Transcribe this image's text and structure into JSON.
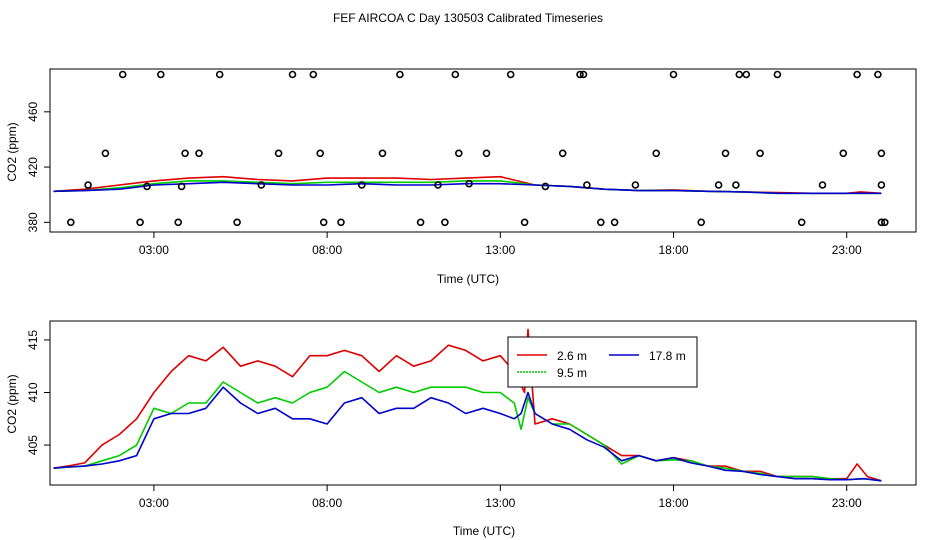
{
  "title": "FEF AIRCOA C  Day 130503  Calibrated Timeseries",
  "colors": {
    "red": "#dd0000",
    "green": "#00cc00",
    "blue": "#0000cc",
    "axis": "#000000"
  },
  "chart_data": [
    {
      "type": "line",
      "xlabel": "Time (UTC)",
      "ylabel": "CO2 (ppm)",
      "xlim": [
        0,
        25
      ],
      "ylim": [
        373,
        491
      ],
      "xticks": [
        3,
        8,
        13,
        18,
        23
      ],
      "xtick_labels": [
        "03:00",
        "08:00",
        "13:00",
        "18:00",
        "23:00"
      ],
      "yticks": [
        380,
        420,
        460
      ],
      "ytick_labels": [
        "380",
        "420",
        "460"
      ],
      "series": [
        {
          "name": "2.6 m",
          "color": "red",
          "x": [
            0.1,
            1,
            2,
            3,
            4,
            5,
            6,
            7,
            8,
            9,
            10,
            11,
            12,
            13,
            13.5,
            14,
            15,
            16,
            17,
            18,
            19,
            20,
            21,
            22,
            23,
            23.4,
            24
          ],
          "y": [
            402.5,
            404,
            407,
            410,
            412,
            413,
            411,
            410,
            412,
            412,
            412,
            411,
            412,
            413,
            410,
            407,
            406,
            404,
            403,
            403.5,
            402.5,
            402,
            401.5,
            401,
            401,
            402,
            401
          ]
        },
        {
          "name": "9.5 m",
          "color": "green",
          "x": [
            0.1,
            1,
            2,
            3,
            4,
            5,
            6,
            7,
            8,
            9,
            10,
            11,
            12,
            13,
            14,
            15,
            16,
            17,
            18,
            19,
            20,
            21,
            22,
            23,
            24
          ],
          "y": [
            402.5,
            403,
            405,
            408,
            410,
            410,
            409,
            408,
            409,
            409,
            409,
            409,
            410,
            410,
            407,
            406,
            404,
            403,
            403,
            402.5,
            402,
            401,
            401,
            401,
            401
          ]
        },
        {
          "name": "17.8 m",
          "color": "blue",
          "x": [
            0.1,
            1,
            2,
            3,
            4,
            5,
            6,
            7,
            8,
            9,
            10,
            11,
            12,
            13,
            14,
            15,
            16,
            17,
            18,
            19,
            20,
            21,
            22,
            23,
            24
          ],
          "y": [
            402.5,
            403,
            404,
            407,
            408,
            409,
            408,
            407,
            407,
            408,
            407,
            407,
            408,
            408,
            407,
            406,
            404,
            403,
            403,
            402.5,
            402,
            401,
            401,
            401,
            401
          ]
        },
        {
          "name": "flags",
          "kind": "points",
          "color": "axis",
          "x": [
            0.6,
            1.1,
            1.6,
            2.1,
            2.6,
            2.8,
            3.2,
            3.7,
            3.8,
            3.9,
            4.3,
            4.9,
            5.4,
            6.1,
            6.6,
            7.0,
            7.6,
            7.8,
            7.9,
            8.4,
            9.0,
            9.6,
            10.1,
            10.7,
            11.2,
            11.4,
            11.7,
            11.8,
            12.1,
            12.6,
            13.3,
            13.7,
            14.3,
            14.8,
            15.3,
            15.4,
            15.5,
            15.9,
            16.3,
            16.9,
            17.5,
            18.0,
            18.8,
            19.3,
            19.5,
            19.8,
            19.9,
            20.1,
            20.5,
            21.0,
            21.7,
            22.3,
            22.9,
            23.3,
            23.9,
            24.0,
            24.0,
            24.0,
            24.1
          ],
          "y": [
            380,
            407,
            430,
            487,
            380,
            406,
            487,
            380,
            406,
            430,
            430,
            487,
            380,
            407,
            430,
            487,
            487,
            430,
            380,
            380,
            407,
            430,
            487,
            380,
            407,
            380,
            487,
            430,
            408,
            430,
            487,
            380,
            406,
            430,
            487,
            487,
            407,
            380,
            380,
            407,
            430,
            487,
            380,
            407,
            430,
            407,
            487,
            487,
            430,
            487,
            380,
            407,
            430,
            487,
            487,
            380,
            407,
            430,
            380
          ]
        }
      ]
    },
    {
      "type": "line",
      "xlabel": "Time (UTC)",
      "ylabel": "CO2 (ppm)",
      "xlim": [
        0,
        25
      ],
      "ylim": [
        401.2,
        416.8
      ],
      "xticks": [
        3,
        8,
        13,
        18,
        23
      ],
      "xtick_labels": [
        "03:00",
        "08:00",
        "13:00",
        "18:00",
        "23:00"
      ],
      "yticks": [
        405,
        410,
        415
      ],
      "ytick_labels": [
        "405",
        "410",
        "415"
      ],
      "legend": {
        "position": "top-right",
        "entries": [
          "2.6 m",
          "17.8 m",
          "9.5 m"
        ]
      },
      "series": [
        {
          "name": "2.6 m",
          "color": "red",
          "x": [
            0.1,
            0.5,
            1.0,
            1.5,
            2.0,
            2.5,
            3.0,
            3.5,
            4.0,
            4.5,
            5.0,
            5.5,
            6.0,
            6.5,
            7.0,
            7.5,
            8.0,
            8.5,
            9.0,
            9.5,
            10.0,
            10.5,
            11.0,
            11.5,
            12.0,
            12.5,
            13.0,
            13.4,
            13.7,
            13.8,
            14.0,
            14.5,
            15.0,
            15.5,
            16.0,
            16.5,
            17.0,
            17.5,
            18.0,
            18.5,
            19.0,
            19.5,
            20.0,
            20.5,
            21.0,
            21.5,
            22.0,
            22.5,
            23.0,
            23.3,
            23.6,
            24.0
          ],
          "y": [
            402.8,
            403.0,
            403.3,
            405.0,
            406.0,
            407.5,
            410.0,
            412.0,
            413.5,
            413.0,
            414.3,
            412.5,
            413.0,
            412.5,
            411.5,
            413.5,
            413.5,
            414.0,
            413.5,
            412.0,
            413.5,
            412.5,
            413.0,
            414.5,
            414.0,
            413.0,
            413.5,
            412.0,
            410.0,
            416.0,
            407.0,
            407.5,
            407.0,
            406.0,
            405.0,
            404.0,
            404.0,
            403.5,
            403.8,
            403.5,
            403.0,
            403.0,
            402.5,
            402.5,
            402.0,
            402.0,
            402.0,
            401.8,
            401.8,
            403.2,
            402.0,
            401.6
          ]
        },
        {
          "name": "9.5 m",
          "color": "green",
          "x": [
            0.1,
            0.5,
            1.0,
            1.5,
            2.0,
            2.5,
            3.0,
            3.5,
            4.0,
            4.5,
            5.0,
            5.5,
            6.0,
            6.5,
            7.0,
            7.5,
            8.0,
            8.5,
            9.0,
            9.5,
            10.0,
            10.5,
            11.0,
            11.5,
            12.0,
            12.5,
            13.0,
            13.4,
            13.6,
            13.8,
            14.0,
            14.5,
            15.0,
            15.5,
            16.0,
            16.5,
            17.0,
            17.5,
            18.0,
            18.5,
            19.0,
            19.5,
            20.0,
            20.5,
            21.0,
            21.5,
            22.0,
            22.5,
            23.0,
            23.5,
            24.0
          ],
          "y": [
            402.8,
            402.9,
            403.0,
            403.5,
            404.0,
            405.0,
            408.5,
            408.0,
            409.0,
            409.0,
            411.0,
            410.0,
            409.0,
            409.5,
            409.0,
            410.0,
            410.5,
            412.0,
            411.0,
            410.0,
            410.5,
            410.0,
            410.5,
            410.5,
            410.5,
            410.0,
            410.0,
            409.0,
            406.5,
            409.5,
            408.0,
            407.0,
            407.0,
            406.0,
            405.0,
            403.2,
            404.0,
            403.5,
            403.6,
            403.5,
            403.0,
            402.8,
            402.5,
            402.3,
            402.0,
            402.0,
            402.0,
            401.8,
            401.7,
            401.8,
            401.6
          ]
        },
        {
          "name": "17.8 m",
          "color": "blue",
          "x": [
            0.1,
            0.5,
            1.0,
            1.5,
            2.0,
            2.5,
            3.0,
            3.5,
            4.0,
            4.5,
            5.0,
            5.5,
            6.0,
            6.5,
            7.0,
            7.5,
            8.0,
            8.5,
            9.0,
            9.5,
            10.0,
            10.5,
            11.0,
            11.5,
            12.0,
            12.5,
            13.0,
            13.4,
            13.6,
            13.8,
            14.0,
            14.5,
            15.0,
            15.5,
            16.0,
            16.5,
            17.0,
            17.5,
            18.0,
            18.5,
            19.0,
            19.5,
            20.0,
            20.5,
            21.0,
            21.5,
            22.0,
            22.5,
            23.0,
            23.5,
            24.0
          ],
          "y": [
            402.8,
            402.9,
            403.0,
            403.2,
            403.5,
            404.0,
            407.5,
            408.0,
            408.0,
            408.5,
            410.5,
            409.0,
            408.0,
            408.5,
            407.5,
            407.5,
            407.0,
            409.0,
            409.5,
            408.0,
            408.5,
            408.5,
            409.5,
            409.0,
            408.0,
            408.5,
            408.0,
            407.5,
            408.0,
            410.0,
            408.0,
            407.0,
            406.5,
            405.5,
            404.8,
            403.5,
            404.0,
            403.5,
            403.8,
            403.3,
            403.0,
            402.6,
            402.5,
            402.2,
            402.0,
            401.8,
            401.8,
            401.7,
            401.7,
            401.8,
            401.6
          ]
        }
      ]
    }
  ]
}
